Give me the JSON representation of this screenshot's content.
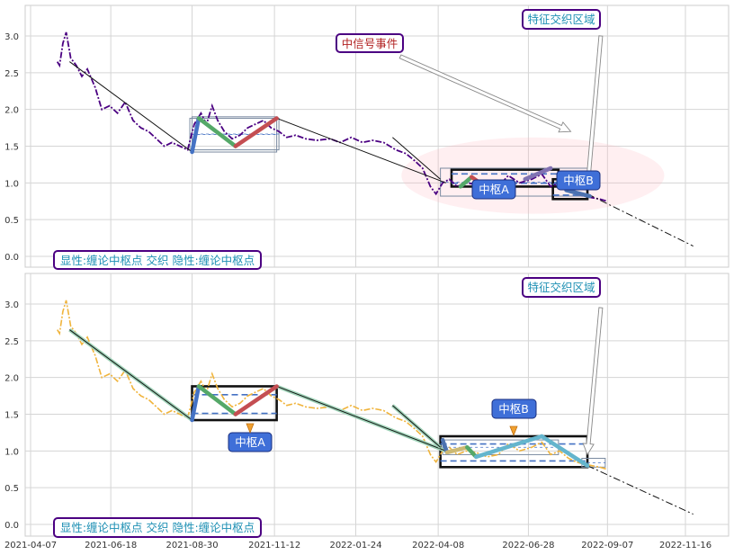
{
  "chart_data": [
    {
      "type": "line",
      "panel": "top",
      "ylim": [
        -0.15,
        3.4
      ],
      "yticks": [
        "0.0",
        "0.5",
        "1.0",
        "1.5",
        "2.0",
        "2.5",
        "3.0"
      ],
      "ytick_values": [
        0.0,
        0.5,
        1.0,
        1.5,
        2.0,
        2.5,
        3.0
      ],
      "grid": true,
      "price_line": {
        "style": "dash-dot",
        "color": "#4b0082",
        "x": [
          "2021-05-01",
          "2021-05-03",
          "2021-05-06",
          "2021-05-09",
          "2021-05-13",
          "2021-05-18",
          "2021-05-23",
          "2021-05-28",
          "2021-06-04",
          "2021-06-10",
          "2021-06-17",
          "2021-06-24",
          "2021-07-01",
          "2021-07-08",
          "2021-07-15",
          "2021-07-22",
          "2021-07-29",
          "2021-08-05",
          "2021-08-12",
          "2021-08-19",
          "2021-08-26",
          "2021-09-01",
          "2021-09-07",
          "2021-09-12",
          "2021-09-17",
          "2021-09-22",
          "2021-09-28",
          "2021-10-05",
          "2021-10-12",
          "2021-10-19",
          "2021-10-26",
          "2021-11-02",
          "2021-11-09",
          "2021-11-16",
          "2021-11-23",
          "2021-12-01",
          "2021-12-10",
          "2021-12-20",
          "2022-01-01",
          "2022-01-10",
          "2022-01-20",
          "2022-01-30",
          "2022-02-08",
          "2022-02-18",
          "2022-03-01",
          "2022-03-10",
          "2022-03-18",
          "2022-03-25",
          "2022-04-01",
          "2022-04-06",
          "2022-04-12",
          "2022-04-18",
          "2022-04-25",
          "2022-05-03",
          "2022-05-12",
          "2022-05-22",
          "2022-06-01",
          "2022-06-10",
          "2022-06-20",
          "2022-07-01",
          "2022-07-10",
          "2022-07-18",
          "2022-07-26",
          "2022-08-03",
          "2022-08-10",
          "2022-08-17",
          "2022-08-24",
          "2022-08-31",
          "2022-09-07"
        ],
        "y": [
          2.65,
          2.6,
          2.9,
          3.05,
          2.7,
          2.6,
          2.45,
          2.55,
          2.3,
          2.0,
          2.05,
          1.95,
          2.1,
          1.85,
          1.75,
          1.7,
          1.6,
          1.5,
          1.55,
          1.5,
          1.45,
          1.8,
          1.95,
          1.8,
          2.05,
          1.85,
          1.7,
          1.6,
          1.65,
          1.75,
          1.8,
          1.85,
          1.75,
          1.7,
          1.62,
          1.65,
          1.6,
          1.58,
          1.6,
          1.55,
          1.62,
          1.55,
          1.58,
          1.55,
          1.45,
          1.4,
          1.3,
          1.2,
          0.95,
          0.85,
          1.0,
          1.05,
          0.95,
          1.0,
          0.98,
          0.92,
          0.95,
          1.1,
          1.0,
          1.05,
          1.12,
          0.95,
          1.0,
          0.9,
          0.85,
          0.82,
          0.8,
          0.78,
          0.75
        ]
      },
      "trend_lines": [
        {
          "x": [
            "2021-05-12",
            "2021-08-30"
          ],
          "y": [
            2.65,
            1.42
          ]
        },
        {
          "x": [
            "2021-11-14",
            "2022-04-15"
          ],
          "y": [
            1.88,
            1.0
          ]
        },
        {
          "x": [
            "2022-02-26",
            "2022-04-10"
          ],
          "y": [
            1.62,
            1.05
          ]
        },
        {
          "x": [
            "2022-08-20",
            "2022-11-23"
          ],
          "y": [
            0.85,
            0.14
          ],
          "style": "dashed"
        }
      ],
      "strokes": [
        {
          "color": "#4472c4",
          "x": [
            "2021-08-30",
            "2021-09-05"
          ],
          "y": [
            1.42,
            1.88
          ]
        },
        {
          "color": "#55a868",
          "x": [
            "2021-09-05",
            "2021-10-08"
          ],
          "y": [
            1.88,
            1.5
          ]
        },
        {
          "color": "#c44e52",
          "x": [
            "2021-10-08",
            "2021-11-14"
          ],
          "y": [
            1.5,
            1.88
          ]
        },
        {
          "color": "#55a868",
          "x": [
            "2022-04-28",
            "2022-05-08"
          ],
          "y": [
            0.95,
            1.08
          ]
        },
        {
          "color": "#c44e52",
          "x": [
            "2022-05-08",
            "2022-05-20"
          ],
          "y": [
            1.08,
            0.95
          ]
        },
        {
          "color": "#8172b2",
          "x": [
            "2022-06-25",
            "2022-07-18"
          ],
          "y": [
            1.05,
            1.2
          ]
        },
        {
          "color": "#4c72b0",
          "x": [
            "2022-08-01",
            "2022-08-22"
          ],
          "y": [
            0.9,
            0.82
          ]
        }
      ],
      "pivot_boxes": [
        {
          "x": [
            "2021-08-30",
            "2021-11-14"
          ],
          "y": [
            1.42,
            1.9
          ],
          "style": "thin"
        },
        {
          "x": [
            "2021-08-28",
            "2021-11-16"
          ],
          "y": [
            1.45,
            1.88
          ],
          "style": "thin"
        },
        {
          "x": [
            "2022-04-20",
            "2022-07-25"
          ],
          "y": [
            0.95,
            1.18
          ],
          "style": "thick"
        },
        {
          "x": [
            "2022-04-10",
            "2022-08-20"
          ],
          "y": [
            0.82,
            1.2
          ],
          "style": "thin"
        },
        {
          "x": [
            "2022-07-20",
            "2022-08-20"
          ],
          "y": [
            0.78,
            1.05
          ],
          "style": "thick"
        }
      ],
      "ellipse_region": {
        "cx": "2022-07-02",
        "cy": 1.1,
        "rx_days": 118,
        "ry": 0.52,
        "color": "#ffb6c1"
      },
      "arrows": [
        {
          "from": [
            "2022-03-05",
            2.72
          ],
          "to": [
            "2022-08-05",
            1.7
          ]
        },
        {
          "from": [
            "2022-09-01",
            3.0
          ],
          "to": [
            "2022-08-20",
            0.92
          ]
        }
      ]
    },
    {
      "type": "line",
      "panel": "bottom",
      "ylim": [
        -0.15,
        3.4
      ],
      "yticks": [
        "0.0",
        "0.5",
        "1.0",
        "1.5",
        "2.0",
        "2.5",
        "3.0"
      ],
      "ytick_values": [
        0.0,
        0.5,
        1.0,
        1.5,
        2.0,
        2.5,
        3.0
      ],
      "grid": true,
      "xticks": [
        "2021-04-07",
        "2021-06-18",
        "2021-08-30",
        "2021-11-12",
        "2022-01-24",
        "2022-04-08",
        "2022-06-28",
        "2022-09-07",
        "2022-11-16"
      ],
      "price_line": {
        "style": "dash-dot",
        "color": "#f0b43c",
        "x": [
          "2021-05-01",
          "2021-05-03",
          "2021-05-06",
          "2021-05-09",
          "2021-05-13",
          "2021-05-18",
          "2021-05-23",
          "2021-05-28",
          "2021-06-04",
          "2021-06-10",
          "2021-06-17",
          "2021-06-24",
          "2021-07-01",
          "2021-07-08",
          "2021-07-15",
          "2021-07-22",
          "2021-07-29",
          "2021-08-05",
          "2021-08-12",
          "2021-08-19",
          "2021-08-26",
          "2021-09-01",
          "2021-09-07",
          "2021-09-12",
          "2021-09-17",
          "2021-09-22",
          "2021-09-28",
          "2021-10-05",
          "2021-10-12",
          "2021-10-19",
          "2021-10-26",
          "2021-11-02",
          "2021-11-09",
          "2021-11-16",
          "2021-11-23",
          "2021-12-01",
          "2021-12-10",
          "2021-12-20",
          "2022-01-01",
          "2022-01-10",
          "2022-01-20",
          "2022-01-30",
          "2022-02-08",
          "2022-02-18",
          "2022-03-01",
          "2022-03-10",
          "2022-03-18",
          "2022-03-25",
          "2022-04-01",
          "2022-04-06",
          "2022-04-12",
          "2022-04-18",
          "2022-04-25",
          "2022-05-03",
          "2022-05-12",
          "2022-05-22",
          "2022-06-01",
          "2022-06-10",
          "2022-06-20",
          "2022-07-01",
          "2022-07-10",
          "2022-07-18",
          "2022-07-26",
          "2022-08-03",
          "2022-08-10",
          "2022-08-17",
          "2022-08-24",
          "2022-08-31",
          "2022-09-07"
        ],
        "y": [
          2.65,
          2.6,
          2.9,
          3.05,
          2.7,
          2.6,
          2.45,
          2.55,
          2.3,
          2.0,
          2.05,
          1.95,
          2.1,
          1.85,
          1.75,
          1.7,
          1.6,
          1.5,
          1.55,
          1.5,
          1.45,
          1.8,
          1.95,
          1.8,
          2.05,
          1.85,
          1.7,
          1.6,
          1.65,
          1.75,
          1.8,
          1.85,
          1.75,
          1.7,
          1.62,
          1.65,
          1.6,
          1.58,
          1.6,
          1.55,
          1.62,
          1.55,
          1.58,
          1.55,
          1.45,
          1.4,
          1.3,
          1.2,
          0.95,
          0.85,
          1.0,
          1.05,
          0.95,
          1.0,
          0.98,
          0.92,
          0.95,
          1.1,
          1.0,
          1.05,
          1.12,
          0.95,
          1.0,
          0.9,
          0.85,
          0.82,
          0.8,
          0.78,
          0.75
        ]
      },
      "trend_lines": [
        {
          "x": [
            "2021-05-12",
            "2021-08-30"
          ],
          "y": [
            2.65,
            1.42
          ]
        },
        {
          "x": [
            "2021-11-14",
            "2022-04-15"
          ],
          "y": [
            1.88,
            1.0
          ]
        },
        {
          "x": [
            "2022-02-26",
            "2022-04-10"
          ],
          "y": [
            1.62,
            1.05
          ]
        },
        {
          "x": [
            "2022-08-20",
            "2022-11-23"
          ],
          "y": [
            0.8,
            0.14
          ],
          "style": "dashed"
        }
      ],
      "strokes": [
        {
          "color": "#4472c4",
          "x": [
            "2021-08-30",
            "2021-09-05"
          ],
          "y": [
            1.42,
            1.88
          ]
        },
        {
          "color": "#55a868",
          "x": [
            "2021-09-05",
            "2021-10-08"
          ],
          "y": [
            1.88,
            1.5
          ]
        },
        {
          "color": "#c44e52",
          "x": [
            "2021-10-08",
            "2021-11-14"
          ],
          "y": [
            1.5,
            1.88
          ]
        },
        {
          "color": "#4c72b0",
          "x": [
            "2022-04-12",
            "2022-04-16"
          ],
          "y": [
            1.15,
            0.98
          ]
        },
        {
          "color": "#ccb974",
          "x": [
            "2022-04-16",
            "2022-05-04"
          ],
          "y": [
            0.98,
            1.05
          ]
        },
        {
          "color": "#55a868",
          "x": [
            "2022-05-04",
            "2022-05-12"
          ],
          "y": [
            1.05,
            0.92
          ]
        },
        {
          "color": "#64b5cd",
          "x": [
            "2022-05-12",
            "2022-07-10"
          ],
          "y": [
            0.92,
            1.2
          ]
        },
        {
          "color": "#64b5cd",
          "x": [
            "2022-07-10",
            "2022-08-20"
          ],
          "y": [
            1.2,
            0.8
          ]
        }
      ],
      "pivot_boxes": [
        {
          "x": [
            "2021-08-30",
            "2021-11-14"
          ],
          "y": [
            1.42,
            1.88
          ],
          "style": "thick"
        },
        {
          "x": [
            "2022-04-10",
            "2022-08-20"
          ],
          "y": [
            0.78,
            1.2
          ],
          "style": "thick"
        },
        {
          "x": [
            "2022-04-12",
            "2022-07-25"
          ],
          "y": [
            0.95,
            1.15
          ],
          "style": "thin"
        },
        {
          "x": [
            "2022-08-15",
            "2022-09-05"
          ],
          "y": [
            0.78,
            0.9
          ],
          "style": "thin"
        }
      ],
      "arrows": [
        {
          "from": [
            "2022-09-01",
            2.95
          ],
          "to": [
            "2022-08-20",
            0.95
          ]
        }
      ]
    }
  ],
  "annotations": {
    "top_legend": "显性:缠论中枢点 交织 隐性:缠论中枢点",
    "top_signal": "中信号事件",
    "top_region": "特征交织区域",
    "top_pivot_a": "中枢A",
    "top_pivot_b": "中枢B",
    "bottom_legend": "显性:缠论中枢点 交织 隐性:缠论中枢点",
    "bottom_region": "特征交织区域",
    "bottom_pivot_a": "中枢A",
    "bottom_pivot_b": "中枢B"
  },
  "colors": {
    "panel_frame": "#cccccc",
    "grid": "#d5d5d5",
    "callout_border": "#4b0082",
    "callout_text_cyan": "#1e90b4",
    "callout_text_red": "#b22222",
    "pivot_label_bg": "#3f6fd8"
  }
}
